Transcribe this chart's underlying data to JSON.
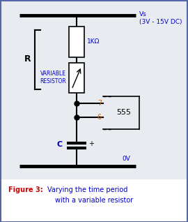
{
  "bg_color": "#e8ecf0",
  "border_color": "#5566aa",
  "circuit_bg": "#ffffff",
  "title_bold": "Figure 3:",
  "title_line2": "Varying the time period",
  "title_line3": "with a variable resistor",
  "title_bold_color": "#cc0000",
  "title_normal_color": "#0000cc",
  "vs_text": "Vs\n(3V - 15V DC)",
  "vs_color": "#0000cc",
  "ov_text": "0V",
  "ov_color": "#0000cc",
  "r_text": "R",
  "one_kohm_text": "1KΩ",
  "one_kohm_color": "#0000cc",
  "var_res_text": "VARIABLE\nRESISTOR",
  "var_res_color": "#0000cc",
  "c_text": "C",
  "c_color": "#0000aa",
  "pin7_text": "7",
  "pin6_text": "6",
  "pin555_text": "555",
  "pin_color": "#cc6600",
  "wire_color": "#000000",
  "component_color": "#000000",
  "fill_color": "#ffffff",
  "caption_bg": "#ffffff"
}
